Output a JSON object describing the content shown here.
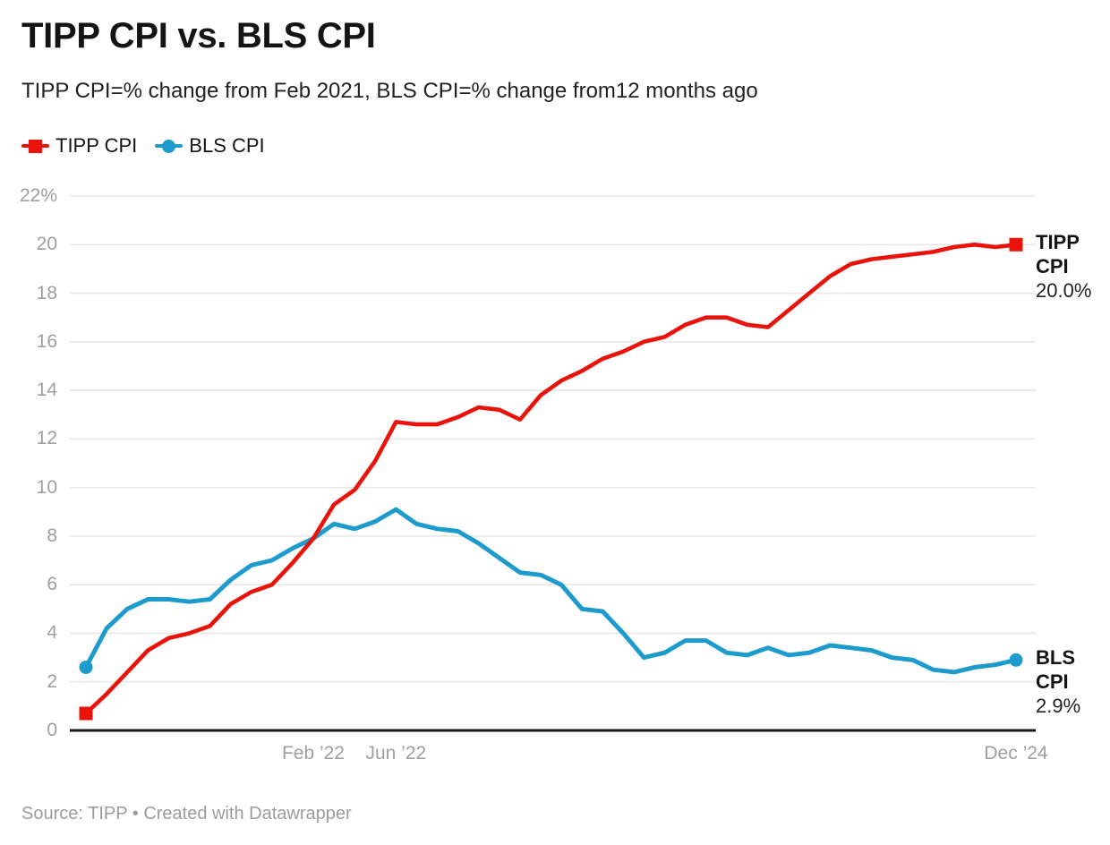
{
  "header": {
    "title": "TIPP CPI vs. BLS CPI",
    "subtitle": "TIPP CPI=% change from Feb 2021, BLS CPI=% change from12 months ago"
  },
  "legend": {
    "items": [
      {
        "label": "TIPP CPI",
        "color": "#e8130b",
        "marker": "square"
      },
      {
        "label": "BLS CPI",
        "color": "#1d9bcd",
        "marker": "circle"
      }
    ]
  },
  "footer": {
    "text": "Source: TIPP • Created with Datawrapper"
  },
  "chart_data": {
    "type": "line",
    "title": "TIPP CPI vs. BLS CPI",
    "subtitle": "TIPP CPI=% change from Feb 2021, BLS CPI=% change from12 months ago",
    "grid": true,
    "legend_position": "top",
    "x": [
      "Mar ’21",
      "Apr ’21",
      "May ’21",
      "Jun ’21",
      "Jul ’21",
      "Aug ’21",
      "Sep ’21",
      "Oct ’21",
      "Nov ’21",
      "Dec ’21",
      "Jan ’22",
      "Feb ’22",
      "Mar ’22",
      "Apr ’22",
      "May ’22",
      "Jun ’22",
      "Jul ’22",
      "Aug ’22",
      "Sep ’22",
      "Oct ’22",
      "Nov ’22",
      "Dec ’22",
      "Jan ’23",
      "Feb ’23",
      "Mar ’23",
      "Apr ’23",
      "May ’23",
      "Jun ’23",
      "Jul ’23",
      "Aug ’23",
      "Sep ’23",
      "Oct ’23",
      "Nov ’23",
      "Dec ’23",
      "Jan ’24",
      "Feb ’24",
      "Mar ’24",
      "Apr ’24",
      "May ’24",
      "Jun ’24",
      "Jul ’24",
      "Aug ’24",
      "Sep ’24",
      "Oct ’24",
      "Nov ’24",
      "Dec ’24"
    ],
    "series": [
      {
        "name": "TIPP CPI",
        "color": "#e8130b",
        "marker": "square",
        "end_label_lines": [
          "TIPP",
          "CPI"
        ],
        "end_value": "20.0%",
        "values": [
          0.7,
          1.5,
          2.4,
          3.3,
          3.8,
          4.0,
          4.3,
          5.2,
          5.7,
          6.0,
          6.9,
          7.9,
          9.3,
          9.9,
          11.1,
          12.7,
          12.6,
          12.6,
          12.9,
          13.3,
          13.2,
          12.8,
          13.8,
          14.4,
          14.8,
          15.3,
          15.6,
          16.0,
          16.2,
          16.7,
          17.0,
          17.0,
          16.7,
          16.6,
          17.3,
          18.0,
          18.7,
          19.2,
          19.4,
          19.5,
          19.6,
          19.7,
          19.9,
          20.0,
          19.9,
          20.0
        ]
      },
      {
        "name": "BLS CPI",
        "color": "#1d9bcd",
        "marker": "circle",
        "end_label_lines": [
          "BLS",
          "CPI"
        ],
        "end_value": "2.9%",
        "values": [
          2.6,
          4.2,
          5.0,
          5.4,
          5.4,
          5.3,
          5.4,
          6.2,
          6.8,
          7.0,
          7.5,
          7.9,
          8.5,
          8.3,
          8.6,
          9.1,
          8.5,
          8.3,
          8.2,
          7.7,
          7.1,
          6.5,
          6.4,
          6.0,
          5.0,
          4.9,
          4.0,
          3.0,
          3.2,
          3.7,
          3.7,
          3.2,
          3.1,
          3.4,
          3.1,
          3.2,
          3.5,
          3.4,
          3.3,
          3.0,
          2.9,
          2.5,
          2.4,
          2.6,
          2.7,
          2.9
        ]
      }
    ],
    "xticks": [
      {
        "index": 11,
        "label": "Feb ’22"
      },
      {
        "index": 15,
        "label": "Jun ’22"
      },
      {
        "index": 45,
        "label": "Dec ’24"
      }
    ],
    "yticks": {
      "min": 0,
      "max": 22,
      "step": 2,
      "suffix_on_max": "%"
    },
    "ylim": [
      0,
      22
    ],
    "colors": {
      "tipp": "#e8130b",
      "bls": "#1d9bcd",
      "gridline": "#e7e7e7",
      "axis": "#161616",
      "tick_text": "#9e9e9e"
    }
  }
}
